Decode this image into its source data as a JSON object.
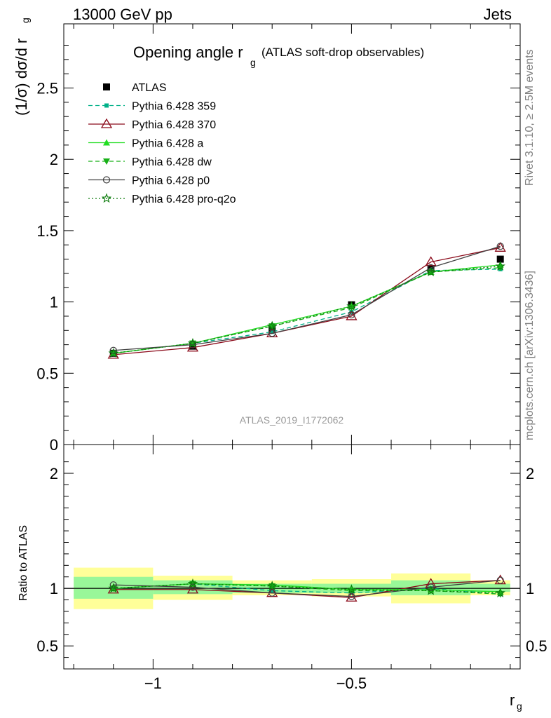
{
  "header": {
    "left": "13000 GeV pp",
    "right": "Jets"
  },
  "plot_title": {
    "main": "Opening angle r",
    "main_sub": "g",
    "suffix": "(ATLAS soft-drop observables)"
  },
  "y_axis_label": {
    "main": "(1/σ) dσ/d r",
    "sub": "g"
  },
  "ratio_axis_label": "Ratio to ATLAS",
  "x_axis_label": {
    "main": "r",
    "sub": "g"
  },
  "watermark": "ATLAS_2019_I1772062",
  "side_text": {
    "rivet": "Rivet 3.1.10, ≥ 2.5M events",
    "mcplots": "mcplots.cern.ch [arXiv:1306.3436]"
  },
  "legend": [
    {
      "label": "ATLAS",
      "color": "#000000",
      "marker": "square-filled",
      "line": "none"
    },
    {
      "label": "Pythia 6.428 359",
      "color": "#00b088",
      "marker": "square-small",
      "line": "dashed"
    },
    {
      "label": "Pythia 6.428 370",
      "color": "#8b0a1a",
      "marker": "triangle-open",
      "line": "solid"
    },
    {
      "label": "Pythia 6.428 a",
      "color": "#22dd22",
      "marker": "triangle-filled",
      "line": "solid"
    },
    {
      "label": "Pythia 6.428 dw",
      "color": "#18b018",
      "marker": "triangle-down-filled",
      "line": "dashed"
    },
    {
      "label": "Pythia 6.428 p0",
      "color": "#404040",
      "marker": "circle-open",
      "line": "solid"
    },
    {
      "label": "Pythia 6.428 pro-q2o",
      "color": "#0a7a0a",
      "marker": "star-open",
      "line": "dotted"
    }
  ],
  "chart_data": [
    {
      "type": "line",
      "panel": "main",
      "xlim": [
        -1.225,
        -0.075
      ],
      "ylim": [
        0,
        2.95
      ],
      "x_ticks": [
        -1,
        -0.5
      ],
      "x_tick_labels": [
        "−1",
        "−0.5"
      ],
      "y_ticks": [
        0,
        0.5,
        1,
        1.5,
        2,
        2.5
      ],
      "y_tick_labels": [
        "0",
        "0.5",
        "1",
        "1.5",
        "2",
        "2.5"
      ],
      "log_scale": false,
      "x": [
        -1.1,
        -0.9,
        -0.7,
        -0.5,
        -0.3,
        -0.125
      ],
      "series": [
        {
          "name": "ATLAS",
          "values": [
            0.64,
            0.69,
            0.81,
            0.98,
            1.23,
            1.3
          ]
        },
        {
          "name": "Pythia 6.428 359",
          "values": [
            0.64,
            0.71,
            0.79,
            0.93,
            1.22,
            1.23
          ]
        },
        {
          "name": "Pythia 6.428 370",
          "values": [
            0.63,
            0.68,
            0.78,
            0.9,
            1.28,
            1.38
          ]
        },
        {
          "name": "Pythia 6.428 a",
          "values": [
            0.64,
            0.71,
            0.84,
            0.97,
            1.21,
            1.26
          ]
        },
        {
          "name": "Pythia 6.428 dw",
          "values": [
            0.64,
            0.71,
            0.83,
            0.96,
            1.21,
            1.24
          ]
        },
        {
          "name": "Pythia 6.428 p0",
          "values": [
            0.66,
            0.7,
            0.78,
            0.91,
            1.24,
            1.39
          ]
        },
        {
          "name": "Pythia 6.428 pro-q2o",
          "values": [
            0.64,
            0.71,
            0.83,
            0.97,
            1.21,
            1.25
          ]
        }
      ]
    },
    {
      "type": "line",
      "panel": "ratio",
      "xlim": [
        -1.225,
        -0.075
      ],
      "ylim": [
        0.3,
        2.25
      ],
      "x_ticks": [
        -1,
        -0.5
      ],
      "x_tick_labels": [
        "−1",
        "−0.5"
      ],
      "y_ticks": [
        0.5,
        1,
        2
      ],
      "y_tick_labels": [
        "0.5",
        "1",
        "2"
      ],
      "reference_line": 1,
      "bins": [
        {
          "low": -1.2,
          "high": -1.0,
          "stat": [
            0.91,
            1.1
          ],
          "total": [
            0.82,
            1.18
          ]
        },
        {
          "low": -1.0,
          "high": -0.8,
          "stat": [
            0.95,
            1.07
          ],
          "total": [
            0.9,
            1.11
          ]
        },
        {
          "low": -0.8,
          "high": -0.6,
          "stat": [
            0.96,
            1.04
          ],
          "total": [
            0.94,
            1.07
          ]
        },
        {
          "low": -0.6,
          "high": -0.4,
          "stat": [
            0.96,
            1.04
          ],
          "total": [
            0.93,
            1.08
          ]
        },
        {
          "low": -0.4,
          "high": -0.2,
          "stat": [
            0.94,
            1.07
          ],
          "total": [
            0.87,
            1.13
          ]
        },
        {
          "low": -0.2,
          "high": -0.1,
          "stat": [
            0.97,
            1.04
          ],
          "total": [
            0.94,
            1.07
          ]
        }
      ],
      "x": [
        -1.1,
        -0.9,
        -0.7,
        -0.5,
        -0.3,
        -0.125
      ],
      "series": [
        {
          "name": "Pythia 6.428 359",
          "values": [
            1.0,
            1.04,
            0.98,
            0.96,
            1.0,
            0.95
          ]
        },
        {
          "name": "Pythia 6.428 370",
          "values": [
            0.99,
            0.99,
            0.96,
            0.92,
            1.04,
            1.07
          ]
        },
        {
          "name": "Pythia 6.428 a",
          "values": [
            1.0,
            1.04,
            1.03,
            0.99,
            0.99,
            0.97
          ]
        },
        {
          "name": "Pythia 6.428 dw",
          "values": [
            1.0,
            1.04,
            1.02,
            0.98,
            0.98,
            0.95
          ]
        },
        {
          "name": "Pythia 6.428 p0",
          "values": [
            1.03,
            1.01,
            0.96,
            0.93,
            1.01,
            1.07
          ]
        },
        {
          "name": "Pythia 6.428 pro-q2o",
          "values": [
            1.0,
            1.04,
            1.02,
            0.99,
            0.98,
            0.96
          ]
        }
      ]
    }
  ]
}
